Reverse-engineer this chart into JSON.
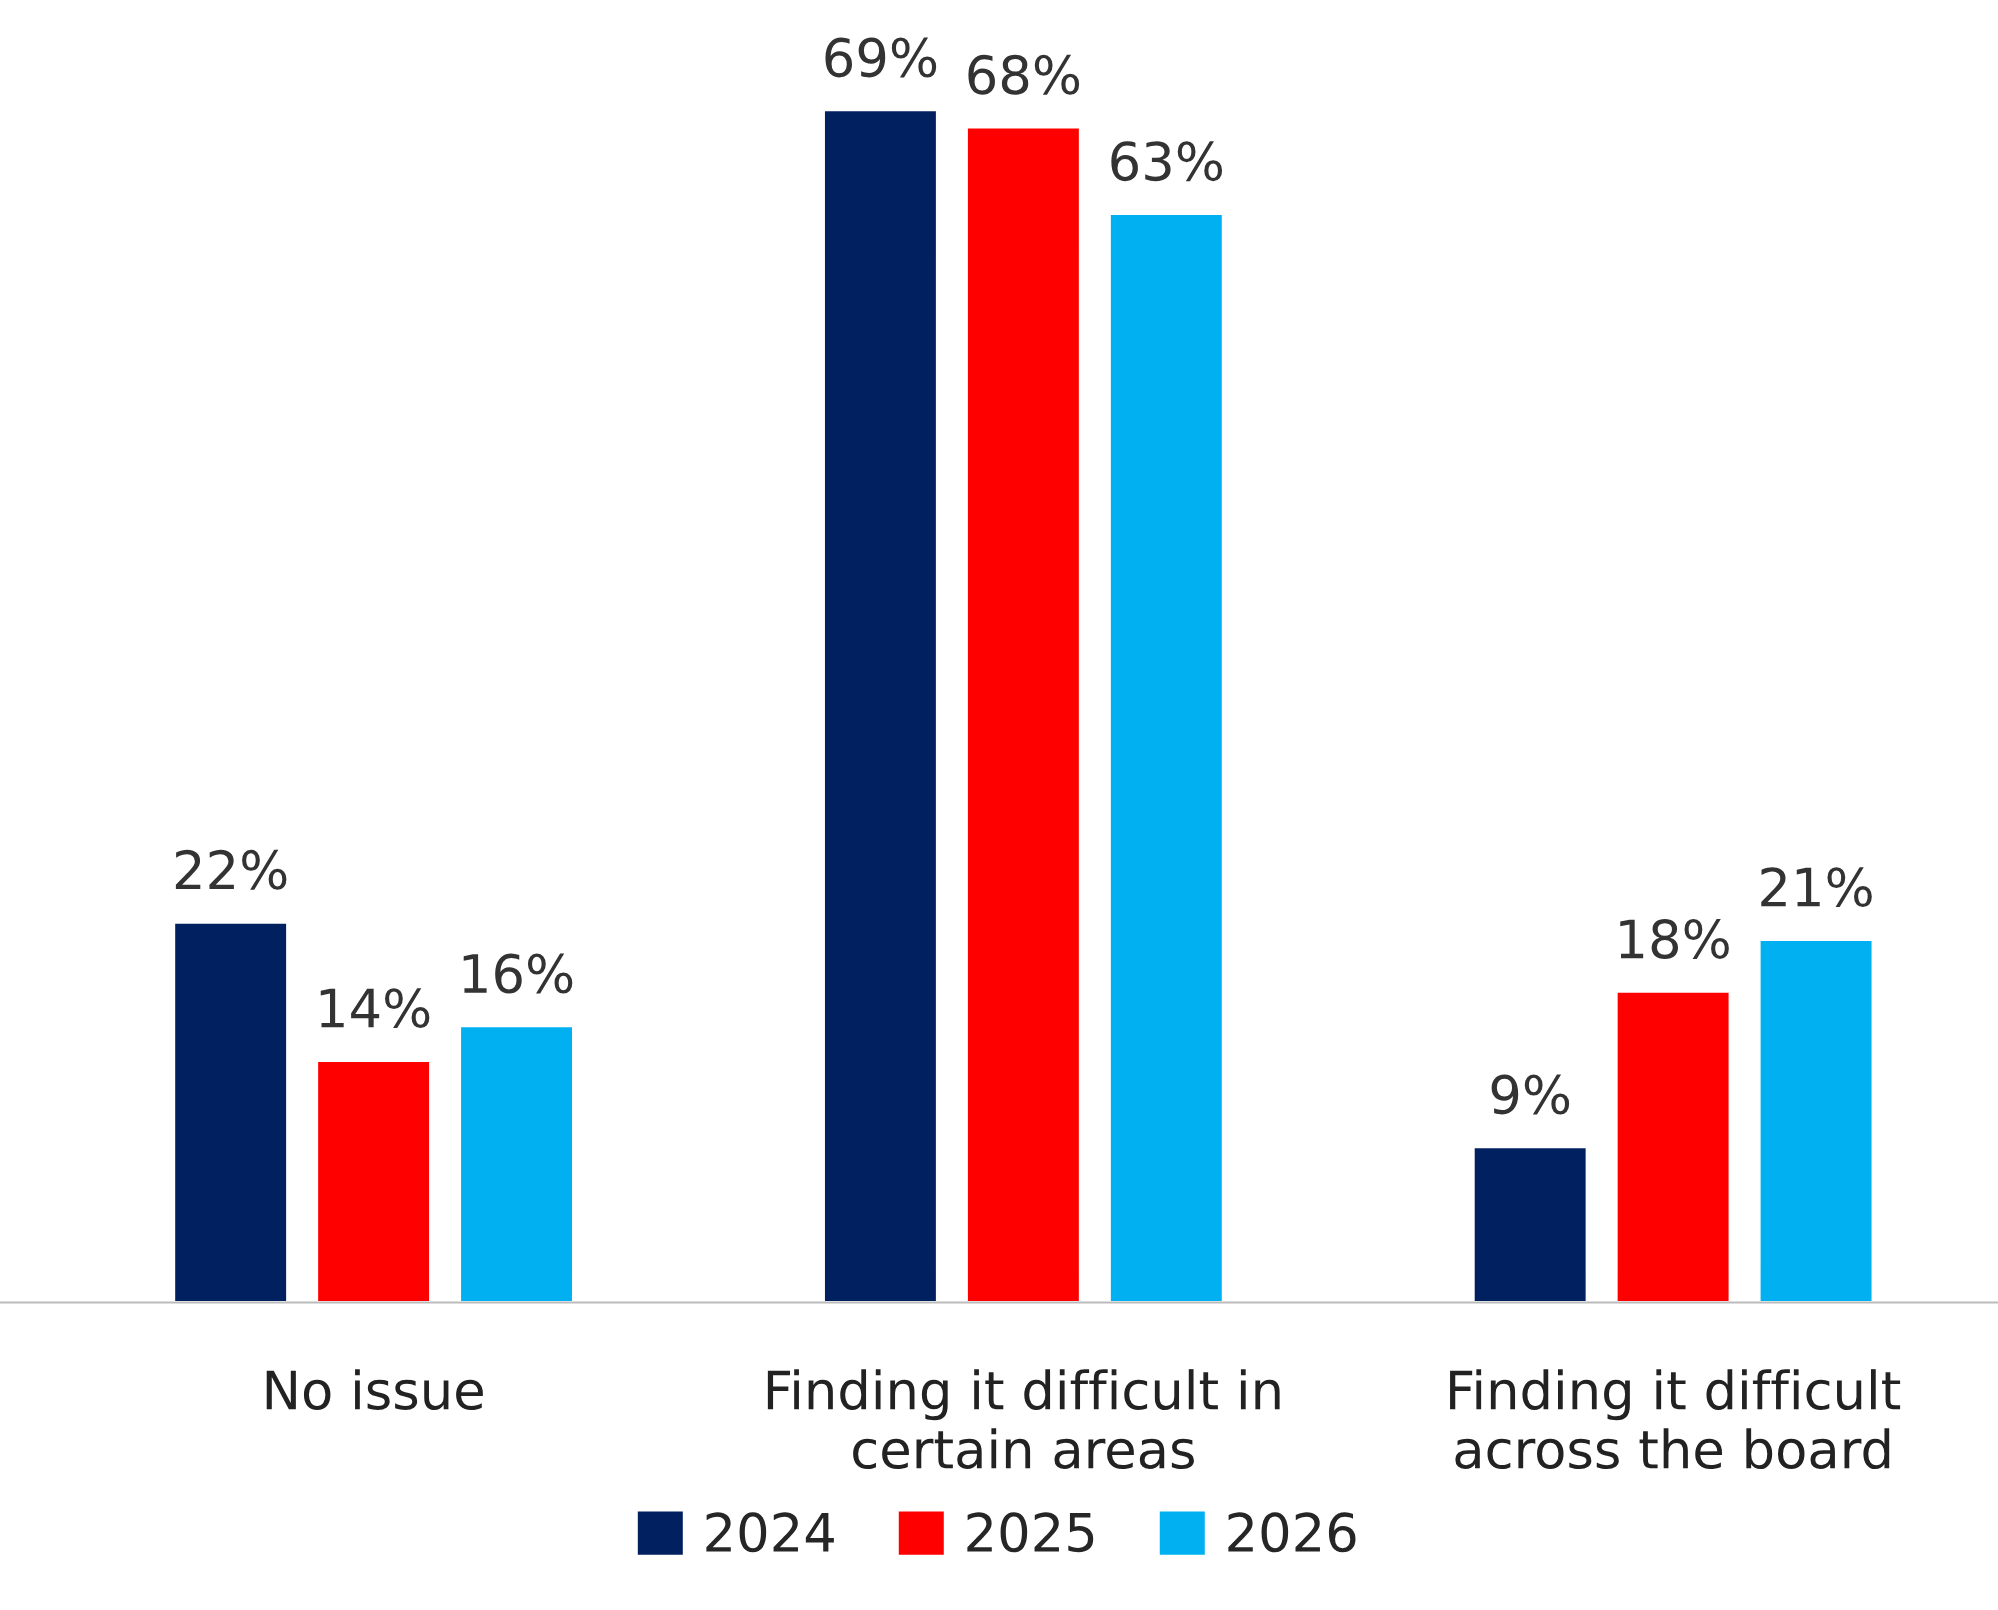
{
  "chart_data": {
    "type": "bar",
    "categories": [
      "No issue",
      "Finding it difficult in\ncertain areas",
      "Finding it difficult\nacross the board"
    ],
    "series": [
      {
        "name": "2024",
        "color": "#002060",
        "values": [
          22,
          69,
          9
        ],
        "value_labels": [
          "22%",
          "69%",
          "9%"
        ]
      },
      {
        "name": "2025",
        "color": "#ff0000",
        "values": [
          14,
          68,
          18
        ],
        "value_labels": [
          "14%",
          "68%",
          "18%"
        ]
      },
      {
        "name": "2026",
        "color": "#00b0f0",
        "values": [
          16,
          63,
          21
        ],
        "value_labels": [
          "16%",
          "63%",
          "21%"
        ]
      }
    ],
    "legend": "bottom",
    "grid": false
  }
}
